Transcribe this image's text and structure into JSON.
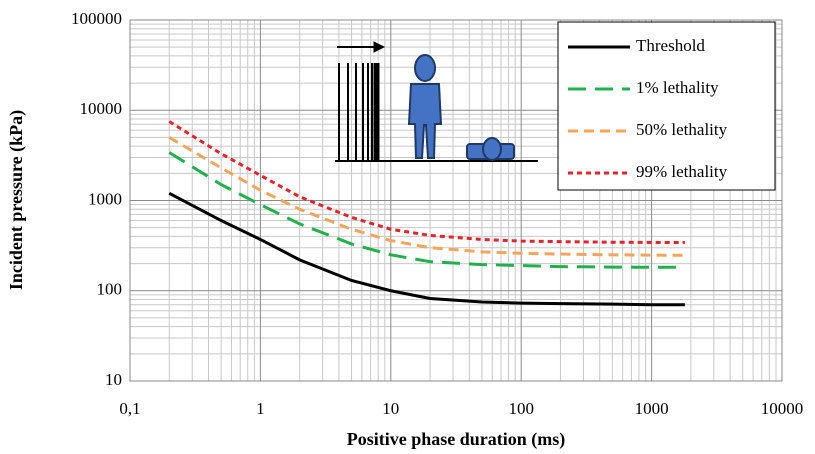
{
  "chart_data": {
    "type": "line",
    "x_label": "Positive phase duration  (ms)",
    "y_label": "Incident  pressure  (kPa)",
    "x": [
      0.2,
      0.5,
      1,
      2,
      5,
      10,
      20,
      50,
      100,
      200,
      500,
      1000,
      1800
    ],
    "series": [
      {
        "name": "Threshold",
        "color": "#000000",
        "dash": "none",
        "values": [
          1200,
          600,
          370,
          220,
          130,
          100,
          82,
          75,
          73,
          72,
          71,
          70,
          70
        ]
      },
      {
        "name": "1% lethality",
        "color": "#22b04b",
        "dash": "18 9",
        "values": [
          3400,
          1500,
          900,
          550,
          330,
          250,
          210,
          195,
          190,
          185,
          183,
          182,
          182
        ]
      },
      {
        "name": "50% lethality",
        "color": "#f5a55a",
        "dash": "10 6",
        "values": [
          5000,
          2300,
          1300,
          800,
          480,
          360,
          300,
          270,
          260,
          255,
          250,
          248,
          247
        ]
      },
      {
        "name": "99% lethality",
        "color": "#e5232a",
        "dash": "5 4",
        "values": [
          7500,
          3300,
          1900,
          1100,
          650,
          480,
          410,
          370,
          355,
          350,
          345,
          343,
          342
        ]
      }
    ],
    "xlim": [
      0.1,
      10000
    ],
    "ylim": [
      10,
      100000
    ],
    "xticks": [
      {
        "value": 0.1,
        "label": "0,1"
      },
      1,
      10,
      100,
      1000,
      10000
    ],
    "yticks": [
      10,
      100,
      1000,
      10000,
      100000
    ],
    "xscale": "log",
    "yscale": "log",
    "grid": true,
    "minor_grid": true,
    "legend": "upper right"
  }
}
